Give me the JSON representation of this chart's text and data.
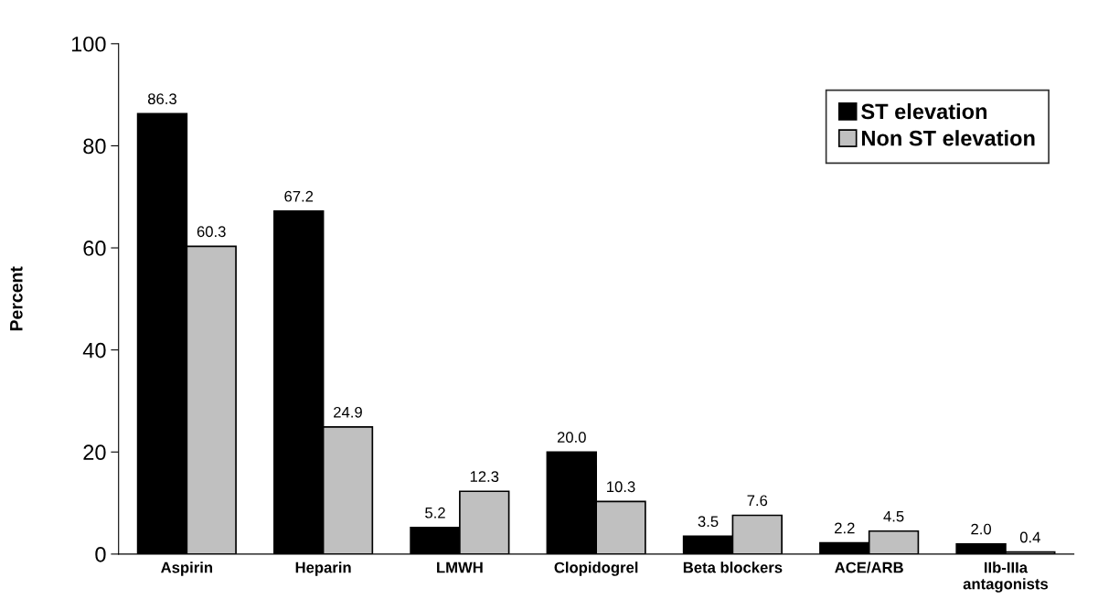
{
  "chart_data": {
    "type": "bar",
    "ylabel": "Percent",
    "categories": [
      "Aspirin",
      "Heparin",
      "LMWH",
      "Clopidogrel",
      "Beta blockers",
      "ACE/ARB",
      "IIb-IIIa\nantagonists"
    ],
    "series": [
      {
        "name": "ST elevation",
        "color": "#000000",
        "values": [
          86.3,
          67.2,
          5.2,
          20.0,
          3.5,
          2.2,
          2.0
        ],
        "value_labels": [
          "86.3",
          "67.2",
          "5.2",
          "20.0",
          "3.5",
          "2.2",
          "2.0"
        ]
      },
      {
        "name": "Non ST elevation",
        "color": "#c0c0c0",
        "values": [
          60.3,
          24.9,
          12.3,
          10.3,
          7.6,
          4.5,
          0.4
        ],
        "value_labels": [
          "60.3",
          "24.9",
          "12.3",
          "10.3",
          "7.6",
          "4.5",
          "0.4"
        ]
      }
    ],
    "ylim": [
      0,
      100
    ],
    "yticks": [
      0,
      20,
      40,
      60,
      80,
      100
    ],
    "grid": false,
    "legend": "top right"
  }
}
